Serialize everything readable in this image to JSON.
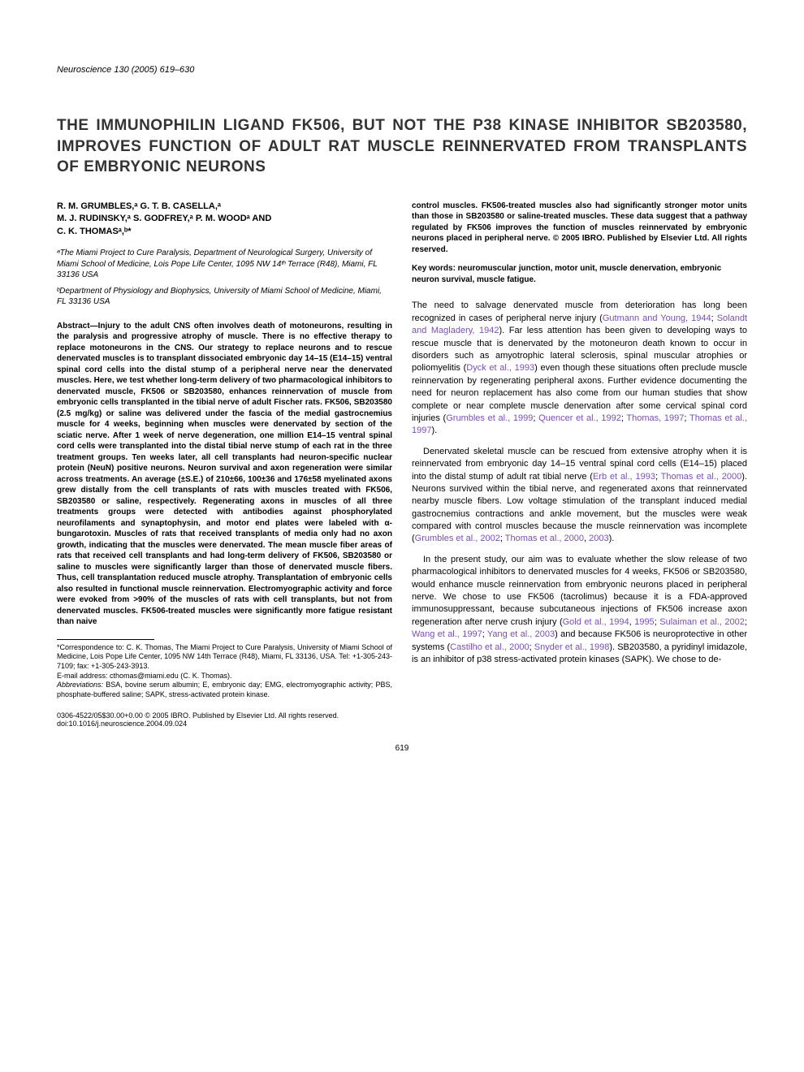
{
  "journal": {
    "name": "Neuroscience",
    "citation": "130 (2005) 619–630"
  },
  "title": "THE IMMUNOPHILIN LIGAND FK506, BUT NOT THE P38 KINASE INHIBITOR SB203580, IMPROVES FUNCTION OF ADULT RAT MUSCLE REINNERVATED FROM TRANSPLANTS OF EMBRYONIC NEURONS",
  "authors": {
    "line1": "R. M. GRUMBLES,ᵃ G. T. B. CASELLA,ᵃ",
    "line2": "M. J. RUDINSKY,ᵃ S. GODFREY,ᵃ P. M. WOODᵃ AND",
    "line3": "C. K. THOMASᵃ,ᵇ*"
  },
  "affiliations": {
    "a": "ᵃThe Miami Project to Cure Paralysis, Department of Neurological Surgery, University of Miami School of Medicine, Lois Pope Life Center, 1095 NW 14ᵗʰ Terrace (R48), Miami, FL 33136 USA",
    "b": "ᵇDepartment of Physiology and Biophysics, University of Miami School of Medicine, Miami, FL 33136 USA"
  },
  "abstract_left": "Abstract—Injury to the adult CNS often involves death of motoneurons, resulting in the paralysis and progressive atrophy of muscle. There is no effective therapy to replace motoneurons in the CNS. Our strategy to replace neurons and to rescue denervated muscles is to transplant dissociated embryonic day 14–15 (E14–15) ventral spinal cord cells into the distal stump of a peripheral nerve near the denervated muscles. Here, we test whether long-term delivery of two pharmacological inhibitors to denervated muscle, FK506 or SB203580, enhances reinnervation of muscle from embryonic cells transplanted in the tibial nerve of adult Fischer rats. FK506, SB203580 (2.5 mg/kg) or saline was delivered under the fascia of the medial gastrocnemius muscle for 4 weeks, beginning when muscles were denervated by section of the sciatic nerve. After 1 week of nerve degeneration, one million E14–15 ventral spinal cord cells were transplanted into the distal tibial nerve stump of each rat in the three treatment groups. Ten weeks later, all cell transplants had neuron-specific nuclear protein (NeuN) positive neurons. Neuron survival and axon regeneration were similar across treatments. An average (±S.E.) of 210±66, 100±36 and 176±58 myelinated axons grew distally from the cell transplants of rats with muscles treated with FK506, SB203580 or saline, respectively. Regenerating axons in muscles of all three treatments groups were detected with antibodies against phosphorylated neurofilaments and synaptophysin, and motor end plates were labeled with α-bungarotoxin. Muscles of rats that received transplants of media only had no axon growth, indicating that the muscles were denervated. The mean muscle fiber areas of rats that received cell transplants and had long-term delivery of FK506, SB203580 or saline to muscles were significantly larger than those of denervated muscle fibers. Thus, cell transplantation reduced muscle atrophy. Transplantation of embryonic cells also resulted in functional muscle reinnervation. Electromyographic activity and force were evoked from >90% of the muscles of rats with cell transplants, but not from denervated muscles. FK506-treated muscles were significantly more fatigue resistant than naive",
  "abstract_right": "control muscles. FK506-treated muscles also had significantly stronger motor units than those in SB203580 or saline-treated muscles. These data suggest that a pathway regulated by FK506 improves the function of muscles reinnervated by embryonic neurons placed in peripheral nerve. © 2005 IBRO. Published by Elsevier Ltd. All rights reserved.",
  "keywords": "Key words: neuromuscular junction, motor unit, muscle denervation, embryonic neuron survival, muscle fatigue.",
  "body": {
    "p1_a": "The need to salvage denervated muscle from deterioration has long been recognized in cases of peripheral nerve injury (",
    "p1_ref1": "Gutmann and Young, 1944",
    "p1_b": "; ",
    "p1_ref2": "Solandt and Magladery, 1942",
    "p1_c": "). Far less attention has been given to developing ways to rescue muscle that is denervated by the motoneuron death known to occur in disorders such as amyotrophic lateral sclerosis, spinal muscular atrophies or poliomyelitis (",
    "p1_ref3": "Dyck et al., 1993",
    "p1_d": ") even though these situations often preclude muscle reinnervation by regenerating peripheral axons. Further evidence documenting the need for neuron replacement has also come from our human studies that show complete or near complete muscle denervation after some cervical spinal cord injuries (",
    "p1_ref4": "Grumbles et al., 1999",
    "p1_e": "; ",
    "p1_ref5": "Quencer et al., 1992",
    "p1_f": "; ",
    "p1_ref6": "Thomas, 1997",
    "p1_g": "; ",
    "p1_ref7": "Thomas et al., 1997",
    "p1_h": ").",
    "p2_a": "Denervated skeletal muscle can be rescued from extensive atrophy when it is reinnervated from embryonic day 14–15 ventral spinal cord cells (E14–15) placed into the distal stump of adult rat tibial nerve (",
    "p2_ref1": "Erb et al., 1993",
    "p2_b": "; ",
    "p2_ref2": "Thomas et al., 2000",
    "p2_c": "). Neurons survived within the tibial nerve, and regenerated axons that reinnervated nearby muscle fibers. Low voltage stimulation of the transplant induced medial gastrocnemius contractions and ankle movement, but the muscles were weak compared with control muscles because the muscle reinnervation was incomplete (",
    "p2_ref3": "Grumbles et al., 2002",
    "p2_d": "; ",
    "p2_ref4": "Thomas et al., 2000",
    "p2_e": ", ",
    "p2_ref5": "2003",
    "p2_f": ").",
    "p3_a": "In the present study, our aim was to evaluate whether the slow release of two pharmacological inhibitors to denervated muscles for 4 weeks, FK506 or SB203580, would enhance muscle reinnervation from embryonic neurons placed in peripheral nerve. We chose to use FK506 (tacrolimus) because it is a FDA-approved immunosuppressant, because subcutaneous injections of FK506 increase axon regeneration after nerve crush injury (",
    "p3_ref1": "Gold et al., 1994",
    "p3_b": ", ",
    "p3_ref2": "1995",
    "p3_c": "; ",
    "p3_ref3": "Sulaiman et al., 2002",
    "p3_d": "; ",
    "p3_ref4": "Wang et al., 1997",
    "p3_e": "; ",
    "p3_ref5": "Yang et al., 2003",
    "p3_f": ") and because FK506 is neuroprotective in other systems (",
    "p3_ref6": "Castilho et al., 2000",
    "p3_g": "; ",
    "p3_ref7": "Snyder et al., 1998",
    "p3_h": "). SB203580, a pyridinyl imidazole, is an inhibitor of p38 stress-activated protein kinases (SAPK). We chose to de-"
  },
  "footnotes": {
    "correspondence": "*Correspondence to: C. K. Thomas, The Miami Project to Cure Paralysis, University of Miami School of Medicine, Lois Pope Life Center, 1095 NW 14th Terrace (R48), Miami, FL 33136, USA. Tel: +1-305-243-7109; fax: +1-305-243-3913.",
    "email_label": "E-mail address: ",
    "email": "cthomas@miami.edu (C. K. Thomas).",
    "abbreviations_label": "Abbreviations: ",
    "abbreviations": "BSA, bovine serum albumin; E, embryonic day; EMG, electromyographic activity; PBS, phosphate-buffered saline; SAPK, stress-activated protein kinase."
  },
  "copyright": "0306-4522/05$30.00+0.00 © 2005 IBRO. Published by Elsevier Ltd. All rights reserved.",
  "doi": "doi:10.1016/j.neuroscience.2004.09.024",
  "page_number": "619",
  "colors": {
    "ref_link": "#7a4fb5",
    "text": "#000000",
    "background": "#ffffff"
  },
  "typography": {
    "title_fontsize": 19,
    "body_fontsize": 11,
    "abstract_fontsize": 10,
    "footnote_fontsize": 9,
    "font_family": "Arial"
  }
}
